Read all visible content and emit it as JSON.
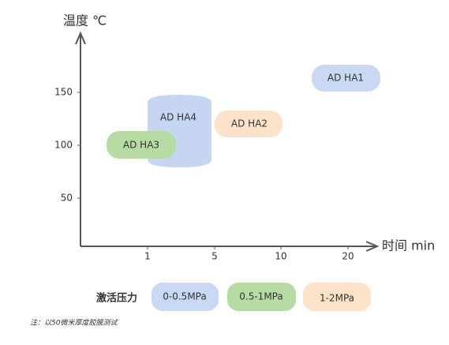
{
  "y_axis": {
    "label": "温度 ℃",
    "ticks": [
      "150",
      "100",
      "50"
    ]
  },
  "x_axis": {
    "label": "时间 min",
    "ticks": [
      "1",
      "5",
      "10",
      "20"
    ]
  },
  "products": [
    "AD HA1",
    "AD HA4",
    "AD HA2",
    "AD HA3"
  ],
  "legend": {
    "title": "激活压力",
    "items": [
      "0-0.5MPa",
      "0.5-1MPa",
      "1-2MPa"
    ]
  },
  "note": "注：以50微米厚度胶膜测试"
}
